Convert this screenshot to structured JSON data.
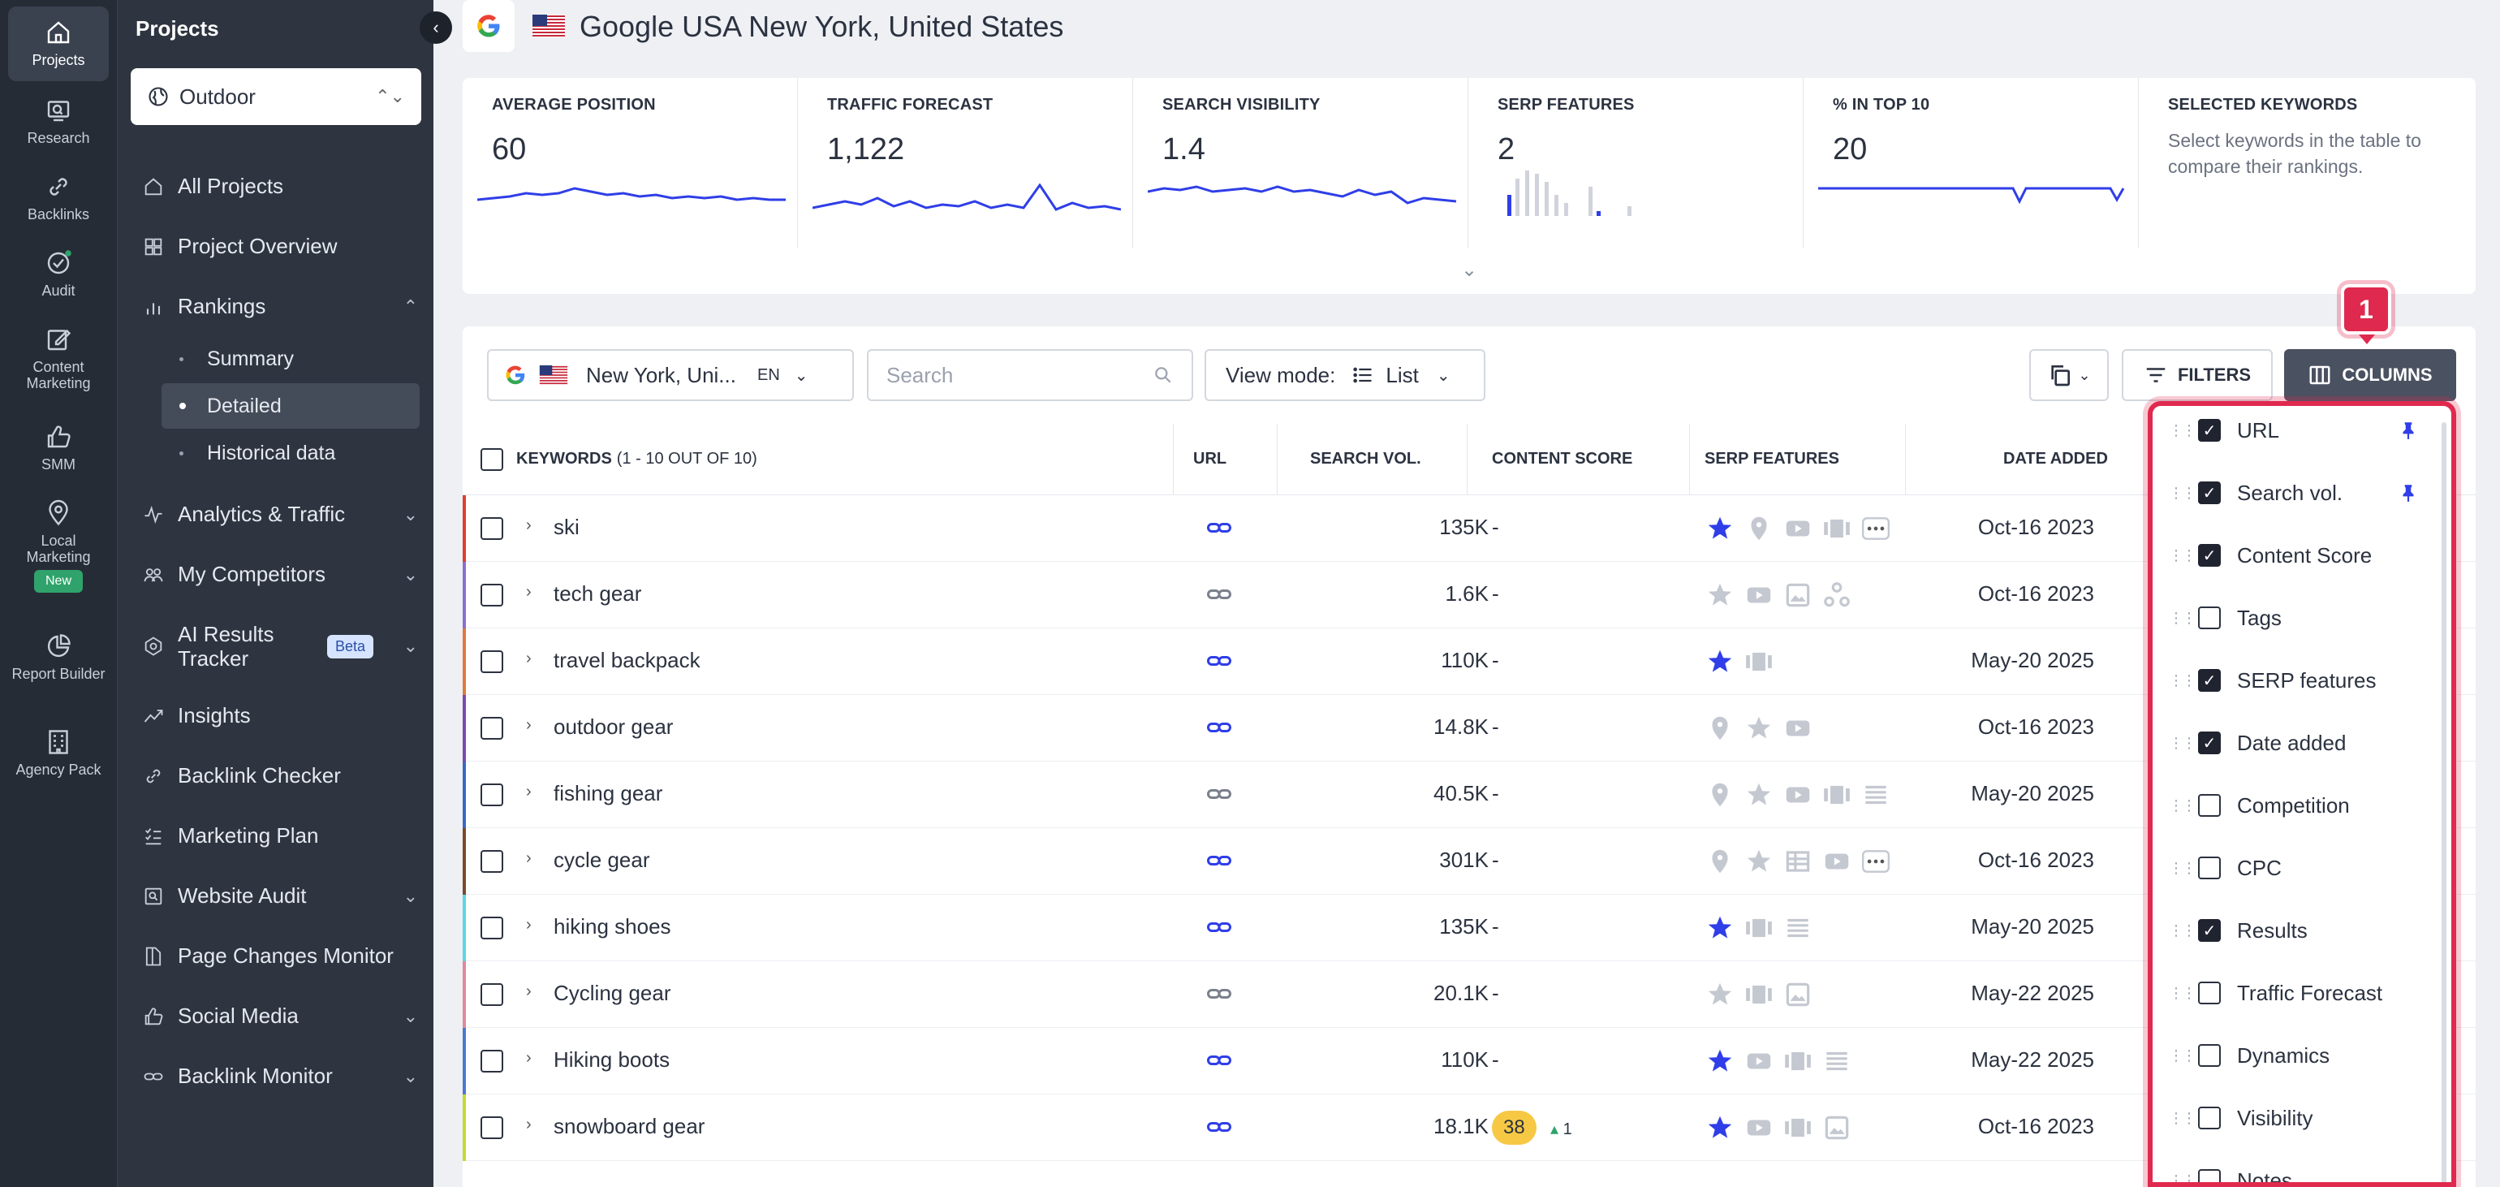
{
  "rail": {
    "items": [
      {
        "label": "Projects",
        "icon": "home-icon"
      },
      {
        "label": "Research",
        "icon": "research-icon"
      },
      {
        "label": "Backlinks",
        "icon": "link-icon"
      },
      {
        "label": "Audit",
        "icon": "audit-icon"
      },
      {
        "label": "Content Marketing",
        "icon": "edit-icon"
      },
      {
        "label": "SMM",
        "icon": "thumb-up-icon"
      },
      {
        "label": "Local Marketing",
        "icon": "location-pin-icon",
        "badge": "New"
      },
      {
        "label": "Report Builder",
        "icon": "pie-chart-icon"
      },
      {
        "label": "Agency Pack",
        "icon": "building-icon"
      }
    ]
  },
  "sidebar": {
    "title": "Projects",
    "project": "Outdoor",
    "nav": [
      {
        "label": "All Projects"
      },
      {
        "label": "Project Overview"
      },
      {
        "label": "Rankings"
      },
      {
        "label": "Analytics & Traffic"
      },
      {
        "label": "My Competitors"
      },
      {
        "label": "AI Results Tracker",
        "badge": "Beta"
      },
      {
        "label": "Insights"
      },
      {
        "label": "Backlink Checker"
      },
      {
        "label": "Marketing Plan"
      },
      {
        "label": "Website Audit"
      },
      {
        "label": "Page Changes Monitor"
      },
      {
        "label": "Social Media"
      },
      {
        "label": "Backlink Monitor"
      }
    ],
    "rankings_sub": [
      "Summary",
      "Detailed",
      "Historical data"
    ]
  },
  "header": {
    "title": "Google USA New York, United States"
  },
  "metrics": [
    {
      "label": "AVERAGE POSITION",
      "value": "60"
    },
    {
      "label": "TRAFFIC FORECAST",
      "value": "1,122"
    },
    {
      "label": "SEARCH VISIBILITY",
      "value": "1.4"
    },
    {
      "label": "SERP FEATURES",
      "value": "2"
    },
    {
      "label": "% IN TOP 10",
      "value": "20"
    },
    {
      "label": "SELECTED KEYWORDS",
      "description": "Select keywords in the table to compare their rankings."
    }
  ],
  "toolbar": {
    "location": "New York, Uni...",
    "language": "EN",
    "search_placeholder": "Search",
    "view_mode_label": "View mode:",
    "view_mode_value": "List",
    "filters": "FILTERS",
    "columns": "COLUMNS"
  },
  "table": {
    "headers": {
      "keywords": "KEYWORDS",
      "keywords_count": "(1 - 10 OUT OF 10)",
      "url": "URL",
      "search_vol": "SEARCH VOL.",
      "content_score": "CONTENT SCORE",
      "serp_features": "SERP FEATURES",
      "date_added": "DATE ADDED"
    },
    "rows": [
      {
        "keyword": "ski",
        "volume": "135K",
        "content_score": "-",
        "date": "Oct-16 2023",
        "stripe": "#e0402c"
      },
      {
        "keyword": "tech gear",
        "volume": "1.6K",
        "content_score": "-",
        "date": "Oct-16 2023",
        "stripe": "#8a6fd0"
      },
      {
        "keyword": "travel backpack",
        "volume": "110K",
        "content_score": "-",
        "date": "May-20 2025",
        "stripe": "#e07a3a"
      },
      {
        "keyword": "outdoor gear",
        "volume": "14.8K",
        "content_score": "-",
        "date": "Oct-16 2023",
        "stripe": "#7d4aa8"
      },
      {
        "keyword": "fishing gear",
        "volume": "40.5K",
        "content_score": "-",
        "date": "May-20 2025",
        "stripe": "#3a68c8"
      },
      {
        "keyword": "cycle gear",
        "volume": "301K",
        "content_score": "-",
        "date": "Oct-16 2023",
        "stripe": "#7a4a2a"
      },
      {
        "keyword": "hiking shoes",
        "volume": "135K",
        "content_score": "-",
        "date": "May-20 2025",
        "stripe": "#5ad8e0"
      },
      {
        "keyword": "Cycling gear",
        "volume": "20.1K",
        "content_score": "-",
        "date": "May-22 2025",
        "stripe": "#e08a9a"
      },
      {
        "keyword": "Hiking boots",
        "volume": "110K",
        "content_score": "-",
        "date": "May-22 2025",
        "stripe": "#4a7ad0"
      },
      {
        "keyword": "snowboard gear",
        "volume": "18.1K",
        "content_score": "38",
        "content_delta": "1",
        "date": "Oct-16 2023",
        "stripe": "#c8d830"
      }
    ]
  },
  "columns_panel": {
    "step": "1",
    "options": [
      {
        "label": "URL",
        "checked": true,
        "pinned": true
      },
      {
        "label": "Search vol.",
        "checked": true,
        "pinned": true
      },
      {
        "label": "Content Score",
        "checked": true
      },
      {
        "label": "Tags",
        "checked": false
      },
      {
        "label": "SERP features",
        "checked": true
      },
      {
        "label": "Date added",
        "checked": true
      },
      {
        "label": "Competition",
        "checked": false
      },
      {
        "label": "CPC",
        "checked": false
      },
      {
        "label": "Results",
        "checked": true
      },
      {
        "label": "Traffic Forecast",
        "checked": false
      },
      {
        "label": "Dynamics",
        "checked": false
      },
      {
        "label": "Visibility",
        "checked": false
      },
      {
        "label": "Notes",
        "checked": false
      }
    ]
  },
  "colors": {
    "accent": "#2f3ee8",
    "highlight": "#e0294e",
    "badge_yellow": "#f6c844"
  }
}
